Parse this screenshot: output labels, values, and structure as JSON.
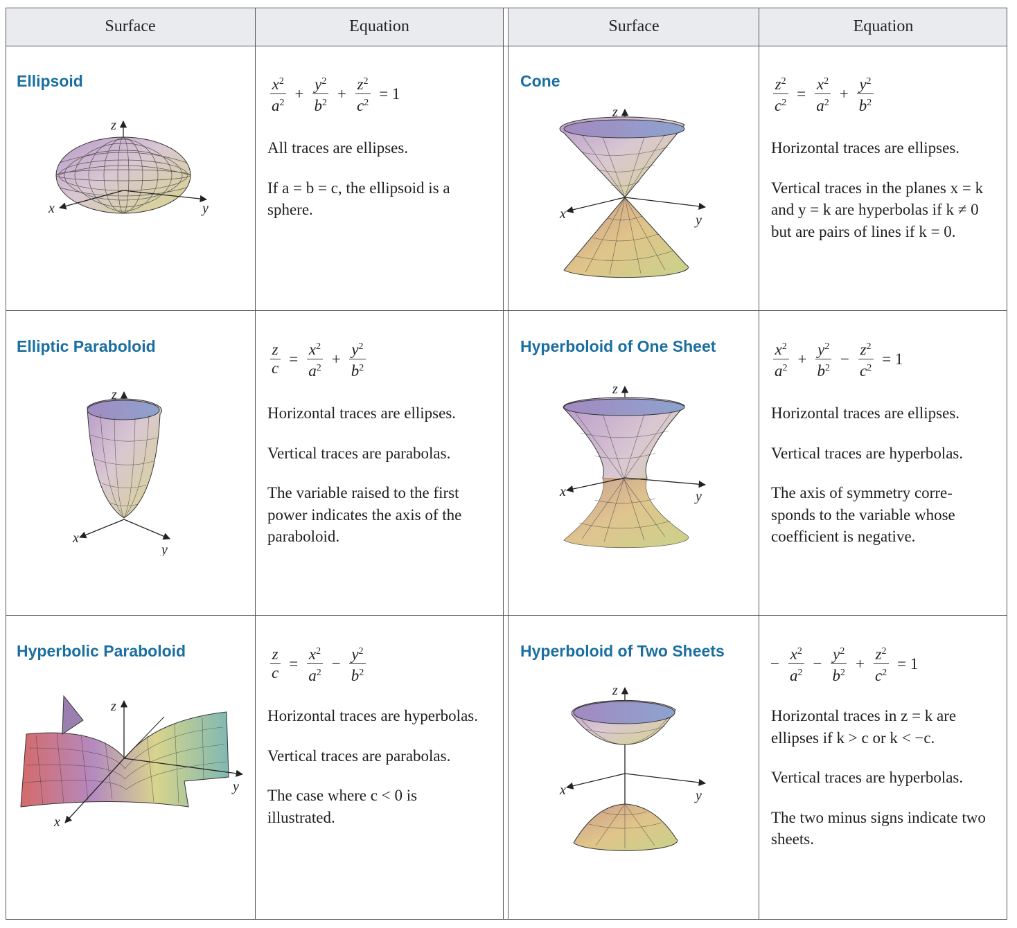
{
  "headers": [
    "Surface",
    "Equation",
    "Surface",
    "Equation"
  ],
  "axis_labels": {
    "x": "x",
    "y": "y",
    "z": "z"
  },
  "rows": [
    {
      "left": {
        "title": "Ellipsoid",
        "equation": "x^2/a^2 + y^2/b^2 + z^2/c^2 = 1",
        "description": [
          "All traces are ellipses.",
          "If a = b = c, the ellipsoid is a sphere."
        ]
      },
      "right": {
        "title": "Cone",
        "equation": "z^2/c^2 = x^2/a^2 + y^2/b^2",
        "description": [
          "Horizontal traces are ellipses.",
          "Vertical traces in the planes x = k and y = k are hyperbolas if k ≠ 0 but are pairs of lines if k = 0."
        ]
      }
    },
    {
      "left": {
        "title": "Elliptic Paraboloid",
        "equation": "z/c = x^2/a^2 + y^2/b^2",
        "description": [
          "Horizontal traces are ellipses.",
          "Vertical traces are parabolas.",
          "The variable raised to the first power indicates the axis of the paraboloid."
        ]
      },
      "right": {
        "title": "Hyperboloid of One Sheet",
        "equation": "x^2/a^2 + y^2/b^2 − z^2/c^2 = 1",
        "description": [
          "Horizontal traces are ellipses.",
          "Vertical traces are hyperbolas.",
          "The axis of symmetry corre-sponds to the variable whose coefficient is negative."
        ]
      }
    },
    {
      "left": {
        "title": "Hyperbolic Paraboloid",
        "equation": "z/c = x^2/a^2 − y^2/b^2",
        "description": [
          "Horizontal traces are hyperbolas.",
          "Vertical traces are parabolas.",
          "The case where c < 0 is illustrated."
        ]
      },
      "right": {
        "title": "Hyperboloid of Two Sheets",
        "equation": "−x^2/a^2 − y^2/b^2 + z^2/c^2 = 1",
        "description": [
          "Horizontal traces in z = k are ellipses if k > c or k < −c.",
          "Vertical traces are hyperbolas.",
          "The two minus signs indicate two sheets."
        ]
      }
    }
  ],
  "colors": {
    "title": "#1a6fa0",
    "header_bg": "#e9ebee",
    "rule": "#555555"
  }
}
